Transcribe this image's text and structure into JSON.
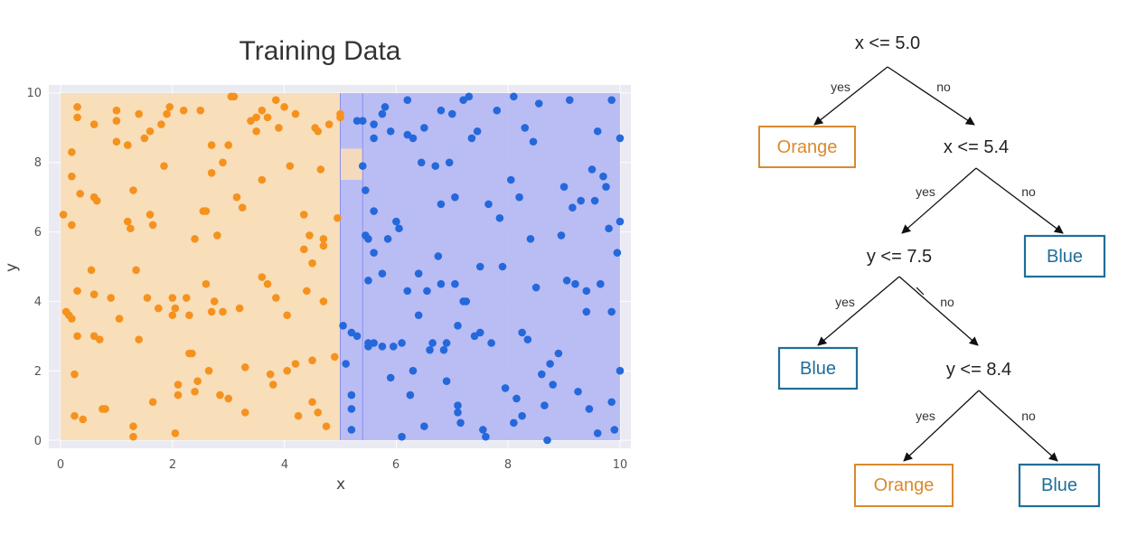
{
  "chart_data": {
    "type": "scatter",
    "title": "Training Data",
    "xlabel": "x",
    "ylabel": "y",
    "xlim": [
      0,
      10
    ],
    "ylim": [
      0,
      10
    ],
    "xticks": [
      "0",
      "2",
      "4",
      "6",
      "8",
      "10"
    ],
    "yticks": [
      "0",
      "2",
      "4",
      "6",
      "8",
      "10"
    ],
    "grid": true,
    "regions": [
      {
        "name": "Orange",
        "color": "#f8dcb4",
        "x": [
          0,
          5.0
        ],
        "y": [
          0,
          10
        ]
      },
      {
        "name": "Blue",
        "color": "#b4b8f4",
        "x": [
          5.0,
          10
        ],
        "y": [
          0,
          10
        ]
      },
      {
        "name": "Orange",
        "color": "#f8dcb4",
        "x": [
          5.0,
          5.4
        ],
        "y": [
          7.5,
          8.4
        ]
      }
    ],
    "series": [
      {
        "color": "#f5921e",
        "points": [
          [
            0.05,
            6.5
          ],
          [
            0.1,
            3.7
          ],
          [
            0.15,
            3.6
          ],
          [
            0.2,
            3.5
          ],
          [
            0.2,
            8.3
          ],
          [
            0.2,
            7.6
          ],
          [
            0.2,
            6.2
          ],
          [
            0.25,
            1.9
          ],
          [
            0.25,
            0.7
          ],
          [
            0.3,
            9.3
          ],
          [
            0.3,
            9.6
          ],
          [
            0.3,
            4.3
          ],
          [
            0.3,
            3.0
          ],
          [
            0.35,
            7.1
          ],
          [
            0.4,
            0.6
          ],
          [
            0.55,
            4.9
          ],
          [
            0.6,
            9.1
          ],
          [
            0.6,
            7.0
          ],
          [
            0.6,
            4.2
          ],
          [
            0.6,
            3.0
          ],
          [
            0.65,
            6.9
          ],
          [
            0.7,
            2.9
          ],
          [
            0.75,
            0.9
          ],
          [
            0.8,
            0.9
          ],
          [
            0.9,
            4.1
          ],
          [
            1.0,
            9.5
          ],
          [
            1.0,
            9.2
          ],
          [
            1.0,
            8.6
          ],
          [
            1.05,
            3.5
          ],
          [
            1.2,
            8.5
          ],
          [
            1.2,
            6.3
          ],
          [
            1.25,
            6.1
          ],
          [
            1.3,
            7.2
          ],
          [
            1.3,
            0.4
          ],
          [
            1.3,
            0.1
          ],
          [
            1.35,
            4.9
          ],
          [
            1.4,
            9.4
          ],
          [
            1.4,
            2.9
          ],
          [
            1.5,
            8.7
          ],
          [
            1.55,
            4.1
          ],
          [
            1.6,
            8.9
          ],
          [
            1.6,
            6.5
          ],
          [
            1.65,
            6.2
          ],
          [
            1.65,
            1.1
          ],
          [
            1.75,
            3.8
          ],
          [
            1.8,
            9.1
          ],
          [
            1.85,
            7.9
          ],
          [
            1.9,
            9.4
          ],
          [
            1.95,
            9.6
          ],
          [
            2.0,
            4.1
          ],
          [
            2.0,
            3.6
          ],
          [
            2.05,
            3.8
          ],
          [
            2.05,
            0.2
          ],
          [
            2.1,
            1.3
          ],
          [
            2.1,
            1.6
          ],
          [
            2.2,
            9.5
          ],
          [
            2.25,
            4.1
          ],
          [
            2.3,
            3.6
          ],
          [
            2.3,
            2.5
          ],
          [
            2.35,
            2.5
          ],
          [
            2.4,
            5.8
          ],
          [
            2.4,
            1.4
          ],
          [
            2.45,
            1.7
          ],
          [
            2.5,
            9.5
          ],
          [
            2.55,
            6.6
          ],
          [
            2.6,
            6.6
          ],
          [
            2.6,
            4.5
          ],
          [
            2.65,
            2.0
          ],
          [
            2.7,
            8.5
          ],
          [
            2.7,
            7.7
          ],
          [
            2.7,
            3.7
          ],
          [
            2.75,
            4.0
          ],
          [
            2.8,
            5.9
          ],
          [
            2.85,
            1.3
          ],
          [
            2.9,
            8.0
          ],
          [
            2.9,
            3.7
          ],
          [
            3.0,
            8.5
          ],
          [
            3.0,
            1.2
          ],
          [
            3.05,
            9.9
          ],
          [
            3.1,
            9.9
          ],
          [
            3.15,
            7.0
          ],
          [
            3.2,
            3.8
          ],
          [
            3.25,
            6.7
          ],
          [
            3.3,
            2.1
          ],
          [
            3.3,
            0.8
          ],
          [
            3.4,
            9.2
          ],
          [
            3.5,
            9.3
          ],
          [
            3.5,
            8.9
          ],
          [
            3.6,
            9.5
          ],
          [
            3.6,
            7.5
          ],
          [
            3.6,
            4.7
          ],
          [
            3.7,
            9.3
          ],
          [
            3.7,
            4.5
          ],
          [
            3.75,
            1.9
          ],
          [
            3.8,
            1.6
          ],
          [
            3.85,
            9.8
          ],
          [
            3.85,
            4.1
          ],
          [
            3.9,
            9.0
          ],
          [
            4.0,
            9.6
          ],
          [
            4.05,
            3.6
          ],
          [
            4.05,
            2.0
          ],
          [
            4.1,
            7.9
          ],
          [
            4.2,
            9.4
          ],
          [
            4.2,
            2.2
          ],
          [
            4.25,
            0.7
          ],
          [
            4.35,
            6.5
          ],
          [
            4.35,
            5.5
          ],
          [
            4.4,
            4.3
          ],
          [
            4.45,
            5.9
          ],
          [
            4.5,
            5.1
          ],
          [
            4.5,
            2.3
          ],
          [
            4.5,
            1.1
          ],
          [
            4.55,
            9.0
          ],
          [
            4.6,
            8.9
          ],
          [
            4.6,
            0.8
          ],
          [
            4.65,
            7.8
          ],
          [
            4.7,
            5.8
          ],
          [
            4.7,
            5.6
          ],
          [
            4.7,
            4.0
          ],
          [
            4.75,
            0.4
          ],
          [
            4.8,
            9.1
          ],
          [
            4.9,
            2.4
          ],
          [
            5.0,
            9.3
          ],
          [
            5.0,
            9.4
          ],
          [
            4.95,
            6.4
          ]
        ]
      },
      {
        "color": "#2468dc",
        "points": [
          [
            5.05,
            3.3
          ],
          [
            5.1,
            2.2
          ],
          [
            5.2,
            3.1
          ],
          [
            5.2,
            1.3
          ],
          [
            5.2,
            0.9
          ],
          [
            5.2,
            0.3
          ],
          [
            5.3,
            9.2
          ],
          [
            5.3,
            3.0
          ],
          [
            5.4,
            9.2
          ],
          [
            5.4,
            7.9
          ],
          [
            5.45,
            7.2
          ],
          [
            5.45,
            5.9
          ],
          [
            5.5,
            5.8
          ],
          [
            5.5,
            4.6
          ],
          [
            5.5,
            2.8
          ],
          [
            5.5,
            2.7
          ],
          [
            5.6,
            9.1
          ],
          [
            5.6,
            8.7
          ],
          [
            5.6,
            6.6
          ],
          [
            5.6,
            5.4
          ],
          [
            5.6,
            2.8
          ],
          [
            5.75,
            9.4
          ],
          [
            5.75,
            4.8
          ],
          [
            5.75,
            2.7
          ],
          [
            5.8,
            9.6
          ],
          [
            5.85,
            5.8
          ],
          [
            5.9,
            8.9
          ],
          [
            5.9,
            1.8
          ],
          [
            5.95,
            2.7
          ],
          [
            6.0,
            6.3
          ],
          [
            6.05,
            6.1
          ],
          [
            6.1,
            2.8
          ],
          [
            6.1,
            0.1
          ],
          [
            6.2,
            9.8
          ],
          [
            6.2,
            8.8
          ],
          [
            6.2,
            4.3
          ],
          [
            6.25,
            1.3
          ],
          [
            6.3,
            8.7
          ],
          [
            6.3,
            2.0
          ],
          [
            6.4,
            4.8
          ],
          [
            6.4,
            3.6
          ],
          [
            6.45,
            8.0
          ],
          [
            6.5,
            9.0
          ],
          [
            6.5,
            0.4
          ],
          [
            6.55,
            4.3
          ],
          [
            6.6,
            2.6
          ],
          [
            6.65,
            2.8
          ],
          [
            6.7,
            7.9
          ],
          [
            6.75,
            5.3
          ],
          [
            6.8,
            9.5
          ],
          [
            6.8,
            6.8
          ],
          [
            6.8,
            4.5
          ],
          [
            6.85,
            2.6
          ],
          [
            6.9,
            2.8
          ],
          [
            6.9,
            1.7
          ],
          [
            6.95,
            8.0
          ],
          [
            7.0,
            9.4
          ],
          [
            7.05,
            7.0
          ],
          [
            7.05,
            4.5
          ],
          [
            7.1,
            3.3
          ],
          [
            7.1,
            1.0
          ],
          [
            7.1,
            0.8
          ],
          [
            7.15,
            0.5
          ],
          [
            7.2,
            9.8
          ],
          [
            7.2,
            4.0
          ],
          [
            7.25,
            4.0
          ],
          [
            7.3,
            9.9
          ],
          [
            7.35,
            8.7
          ],
          [
            7.4,
            3.0
          ],
          [
            7.45,
            8.9
          ],
          [
            7.5,
            5.0
          ],
          [
            7.5,
            3.1
          ],
          [
            7.55,
            0.3
          ],
          [
            7.6,
            0.1
          ],
          [
            7.65,
            6.8
          ],
          [
            7.7,
            2.8
          ],
          [
            7.8,
            9.5
          ],
          [
            7.85,
            6.4
          ],
          [
            7.9,
            5.0
          ],
          [
            7.95,
            1.5
          ],
          [
            8.05,
            7.5
          ],
          [
            8.1,
            9.9
          ],
          [
            8.1,
            0.5
          ],
          [
            8.15,
            1.2
          ],
          [
            8.2,
            7.0
          ],
          [
            8.25,
            3.1
          ],
          [
            8.25,
            0.7
          ],
          [
            8.3,
            9.0
          ],
          [
            8.35,
            2.9
          ],
          [
            8.4,
            5.8
          ],
          [
            8.45,
            8.6
          ],
          [
            8.5,
            4.4
          ],
          [
            8.55,
            9.7
          ],
          [
            8.6,
            1.9
          ],
          [
            8.65,
            1.0
          ],
          [
            8.7,
            0.0
          ],
          [
            8.75,
            2.2
          ],
          [
            8.8,
            1.6
          ],
          [
            8.9,
            2.5
          ],
          [
            8.95,
            5.9
          ],
          [
            9.0,
            7.3
          ],
          [
            9.05,
            4.6
          ],
          [
            9.1,
            9.8
          ],
          [
            9.15,
            6.7
          ],
          [
            9.2,
            4.5
          ],
          [
            9.25,
            1.4
          ],
          [
            9.3,
            6.9
          ],
          [
            9.4,
            4.3
          ],
          [
            9.4,
            3.7
          ],
          [
            9.45,
            0.9
          ],
          [
            9.5,
            7.8
          ],
          [
            9.55,
            6.9
          ],
          [
            9.6,
            8.9
          ],
          [
            9.6,
            0.2
          ],
          [
            9.7,
            7.6
          ],
          [
            9.75,
            7.3
          ],
          [
            9.8,
            6.1
          ],
          [
            9.85,
            3.7
          ],
          [
            9.85,
            1.1
          ],
          [
            9.9,
            0.3
          ],
          [
            9.95,
            5.4
          ],
          [
            10.0,
            8.7
          ],
          [
            10.0,
            6.3
          ],
          [
            10.0,
            2.0
          ],
          [
            9.65,
            4.5
          ],
          [
            9.85,
            9.8
          ]
        ]
      }
    ]
  },
  "tree": {
    "nodes": {
      "root": "x <= 5.0",
      "n2": "x <= 5.4",
      "n3": "y <= 7.5",
      "n4": "y <= 8.4"
    },
    "leaves": {
      "l1": "Orange",
      "l2": "Blue",
      "l3": "Blue",
      "l4": "Orange",
      "l5": "Blue"
    },
    "edges": {
      "yes": "yes",
      "no": "no"
    },
    "colors": {
      "orange": "#d98a2e",
      "blue": "#1f6e99"
    }
  }
}
